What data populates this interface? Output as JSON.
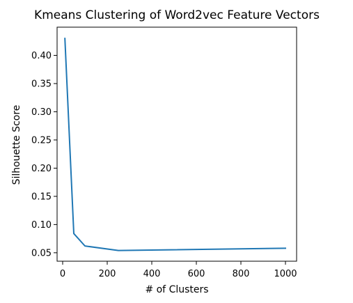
{
  "chart_data": {
    "type": "line",
    "title": "Kmeans Clustering of Word2vec Feature Vectors",
    "xlabel": "# of Clusters",
    "ylabel": "Silhouette Score",
    "xlim": [
      -25,
      1050
    ],
    "ylim": [
      0.035,
      0.45
    ],
    "xticks": [
      0,
      200,
      400,
      600,
      800,
      1000
    ],
    "xtick_labels": [
      "0",
      "200",
      "400",
      "600",
      "800",
      "1000"
    ],
    "yticks": [
      0.05,
      0.1,
      0.15,
      0.2,
      0.25,
      0.3,
      0.35,
      0.4
    ],
    "ytick_labels": [
      "0.05",
      "0.10",
      "0.15",
      "0.20",
      "0.25",
      "0.30",
      "0.35",
      "0.40"
    ],
    "grid": false,
    "legend": "none",
    "series": [
      {
        "color": "#1f77b4",
        "x": [
          10,
          50,
          100,
          250,
          1000
        ],
        "y": [
          0.43,
          0.084,
          0.062,
          0.054,
          0.058
        ]
      }
    ]
  }
}
